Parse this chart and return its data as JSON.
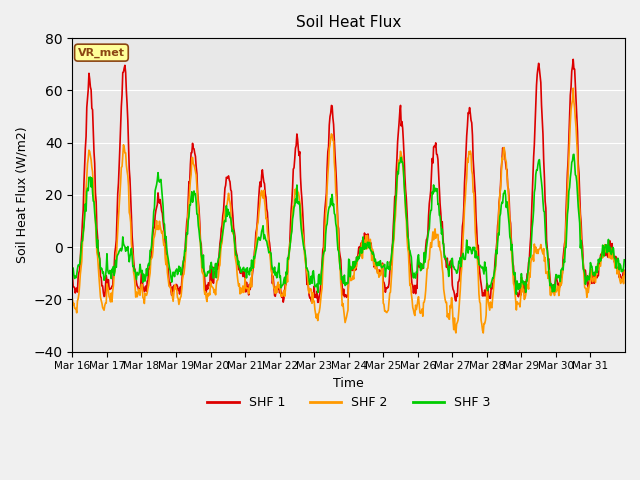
{
  "title": "Soil Heat Flux",
  "ylabel": "Soil Heat Flux (W/m2)",
  "xlabel": "Time",
  "ylim": [
    -40,
    80
  ],
  "yticks": [
    -40,
    -20,
    0,
    20,
    40,
    60,
    80
  ],
  "legend_label": "VR_met",
  "series_labels": [
    "SHF 1",
    "SHF 2",
    "SHF 3"
  ],
  "series_colors": [
    "#dd0000",
    "#ff9900",
    "#00cc00"
  ],
  "line_width": 1.2,
  "background_color": "#e8e8e8",
  "n_days": 16,
  "start_day": 16,
  "xtick_labels": [
    "Mar 16",
    "Mar 17",
    "Mar 18",
    "Mar 19",
    "Mar 20",
    "Mar 21",
    "Mar 22",
    "Mar 23",
    "Mar 24",
    "Mar 25",
    "Mar 26",
    "Mar 27",
    "Mar 28",
    "Mar 29",
    "Mar 30",
    "Mar 31"
  ]
}
